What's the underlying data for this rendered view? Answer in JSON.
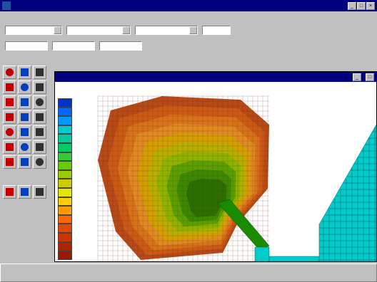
{
  "window": {
    "title": ""
  },
  "menu": {
    "items": [
      "",
      "",
      "",
      "",
      "",
      "",
      "",
      "",
      "",
      "",
      "",
      ""
    ]
  },
  "toolbar1": {
    "coverage_label": "",
    "coverage_value": "",
    "solution_label": "",
    "solution_value": "",
    "timestep_label": "",
    "timestep_value": "",
    "scalar_label": "",
    "scalar_value": ""
  },
  "toolbar2": {
    "fields": [
      "",
      "",
      "",
      "",
      "",
      ""
    ]
  },
  "status": {
    "items": [
      "",
      "",
      "",
      "",
      "",
      ""
    ]
  },
  "mesh_window": {
    "title": "",
    "field2": "",
    "field3": ""
  },
  "legend": {
    "header": [
      "",
      ""
    ],
    "labels": [
      "",
      "",
      "",
      "",
      "",
      "",
      "",
      "",
      "",
      "",
      "",
      "",
      "",
      "",
      "",
      "",
      "",
      ""
    ],
    "colors": [
      "#0033cc",
      "#0066ff",
      "#0099ff",
      "#00cccc",
      "#00cc99",
      "#00cc66",
      "#33cc33",
      "#66cc00",
      "#99cc00",
      "#cccc00",
      "#e6e600",
      "#ffcc00",
      "#ff9900",
      "#ff6600",
      "#e04a00",
      "#cc3300",
      "#b02200",
      "#991a00"
    ]
  },
  "colors": {
    "title_bar": "#000080",
    "mesh_window_title": "#000080",
    "mesh_line": "#5a2a10",
    "channel": "#00cccc"
  },
  "palette_icons": [
    "select-icon",
    "node-icon",
    "element-icon",
    "create-node-icon",
    "move-icon",
    "select-element-icon",
    "add-icon",
    "merge-icon",
    "split-icon",
    "zoom-in-icon",
    "zoom-out-icon",
    "pan-icon",
    "frame-icon",
    "rotate-icon",
    "measure-icon",
    "grid-icon",
    "contour-icon",
    "vector-icon",
    "refresh-icon",
    "layer-icon",
    "display-icon",
    "pointer-icon",
    "help-icon",
    "close-icon"
  ]
}
